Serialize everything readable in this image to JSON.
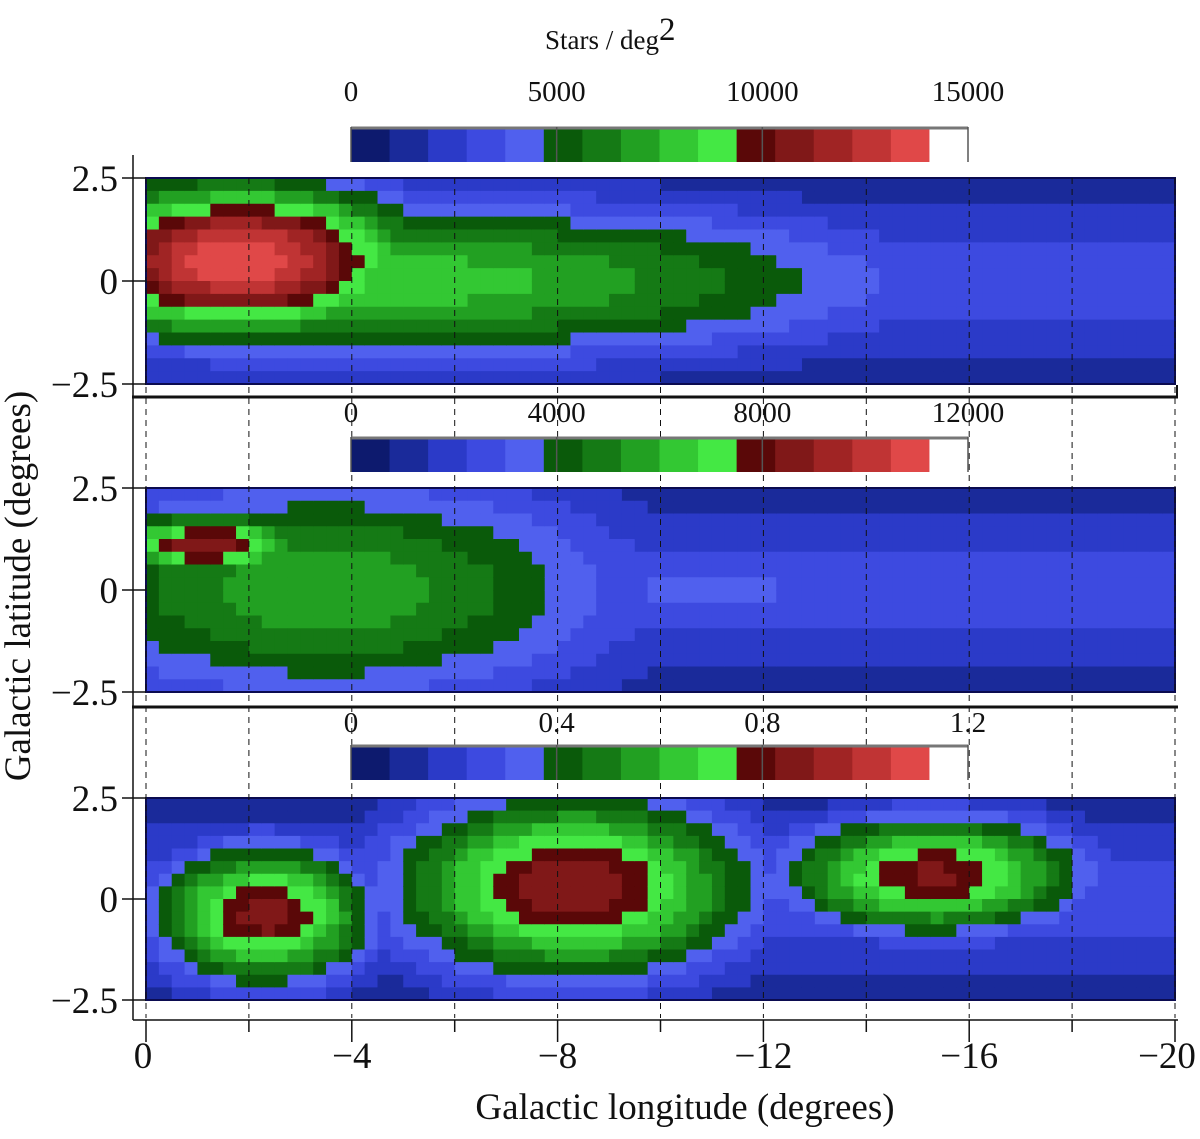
{
  "figure": {
    "colorbar_title": "Stars / deg",
    "colorbar_title_superscript": "2",
    "xlabel": "Galactic longitude (degrees)",
    "ylabel": "Galactic latitude (degrees)"
  },
  "chart_data": [
    {
      "type": "heatmap",
      "panel": "top",
      "xlim": [
        0,
        -20
      ],
      "ylim": [
        -2.5,
        2.5
      ],
      "x_ticks": [
        "0",
        "−4",
        "−8",
        "−12",
        "−16",
        "−20"
      ],
      "y_ticks": [
        "2.5",
        "0",
        "−2.5"
      ],
      "colorbar": {
        "min": 0,
        "max": 15000,
        "ticks": [
          "0",
          "5000",
          "10000",
          "15000"
        ]
      },
      "colormap": [
        "#0d1a6e",
        "#1a2a9a",
        "#2b3ac8",
        "#3d4ae0",
        "#5060ee",
        "#0a5a0a",
        "#157a15",
        "#22a022",
        "#33c833",
        "#44e844",
        "#5a0808",
        "#801818",
        "#a02424",
        "#c03434",
        "#e04848",
        "#ffffff"
      ],
      "features": [
        {
          "l": -1.8,
          "b": 0.5,
          "sl": 2.6,
          "sb": 1.4,
          "value": 15000
        },
        {
          "l": -5.0,
          "b": 0.0,
          "sl": 7.5,
          "sb": 1.5,
          "value": 8500
        },
        {
          "l": -11.5,
          "b": 0.0,
          "sl": 4.0,
          "sb": 0.6,
          "value": 5200
        }
      ]
    },
    {
      "type": "heatmap",
      "panel": "middle",
      "xlim": [
        0,
        -20
      ],
      "ylim": [
        -2.5,
        2.5
      ],
      "x_ticks": [
        "0",
        "−4",
        "−8",
        "−12",
        "−16",
        "−20"
      ],
      "y_ticks": [
        "2.5",
        "0",
        "−2.5"
      ],
      "colorbar": {
        "min": 0,
        "max": 12000,
        "ticks": [
          "0",
          "4000",
          "8000",
          "12000"
        ]
      },
      "colormap": [
        "#0d1a6e",
        "#1a2a9a",
        "#2b3ac8",
        "#3d4ae0",
        "#5060ee",
        "#0a5a0a",
        "#157a15",
        "#22a022",
        "#33c833",
        "#44e844",
        "#5a0808",
        "#801818",
        "#a02424",
        "#c03434",
        "#e04848",
        "#ffffff"
      ],
      "features": [
        {
          "l": -1.2,
          "b": 1.1,
          "sl": 1.5,
          "sb": 0.6,
          "value": 9500
        },
        {
          "l": -3.5,
          "b": 0.0,
          "sl": 4.6,
          "sb": 2.2,
          "value": 6200
        },
        {
          "l": -11.0,
          "b": 0.0,
          "sl": 2.0,
          "sb": 0.35,
          "value": 4300
        }
      ]
    },
    {
      "type": "heatmap",
      "panel": "bottom",
      "xlim": [
        0,
        -20
      ],
      "ylim": [
        -2.5,
        2.5
      ],
      "x_ticks": [
        "0",
        "−4",
        "−8",
        "−12",
        "−16",
        "−20"
      ],
      "y_ticks": [
        "2.5",
        "0",
        "−2.5"
      ],
      "colorbar": {
        "min": 0,
        "max": 1.2,
        "ticks": [
          "0",
          "0.4",
          "0.8",
          "1.2"
        ]
      },
      "colormap": [
        "#0d1a6e",
        "#1a2a9a",
        "#2b3ac8",
        "#3d4ae0",
        "#5060ee",
        "#0a5a0a",
        "#157a15",
        "#22a022",
        "#33c833",
        "#44e844",
        "#5a0808",
        "#801818",
        "#a02424",
        "#c03434",
        "#e04848",
        "#ffffff"
      ],
      "features": [
        {
          "l": -2.3,
          "b": -0.4,
          "sl": 1.6,
          "sb": 1.3,
          "value": 0.92
        },
        {
          "l": -8.3,
          "b": 0.3,
          "sl": 2.6,
          "sb": 1.7,
          "value": 0.95
        },
        {
          "l": -15.3,
          "b": 0.6,
          "sl": 2.2,
          "sb": 1.1,
          "value": 0.9
        }
      ]
    }
  ]
}
